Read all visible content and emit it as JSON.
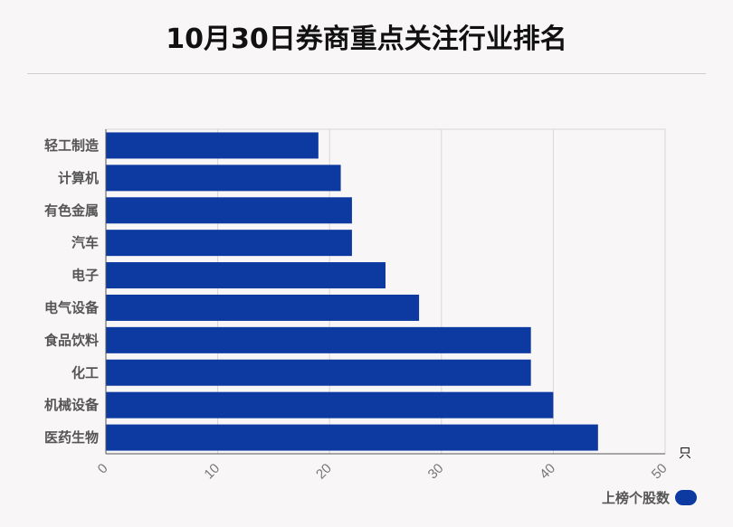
{
  "title": "10月30日券商重点关注行业排名",
  "chart_data": {
    "type": "bar",
    "orientation": "horizontal",
    "categories": [
      "轻工制造",
      "计算机",
      "有色金属",
      "汽车",
      "电子",
      "电气设备",
      "食品饮料",
      "化工",
      "机械设备",
      "医药生物"
    ],
    "series": [
      {
        "name": "上榜个股数",
        "values": [
          19,
          21,
          22,
          22,
          25,
          28,
          38,
          38,
          40,
          44
        ],
        "color": "#0d3aa1"
      }
    ],
    "xlim": [
      0,
      50
    ],
    "xticks": [
      "0",
      "10",
      "20",
      "30",
      "40",
      "50"
    ],
    "x_unit": "只",
    "grid": true,
    "legend_position": "bottom-right"
  }
}
